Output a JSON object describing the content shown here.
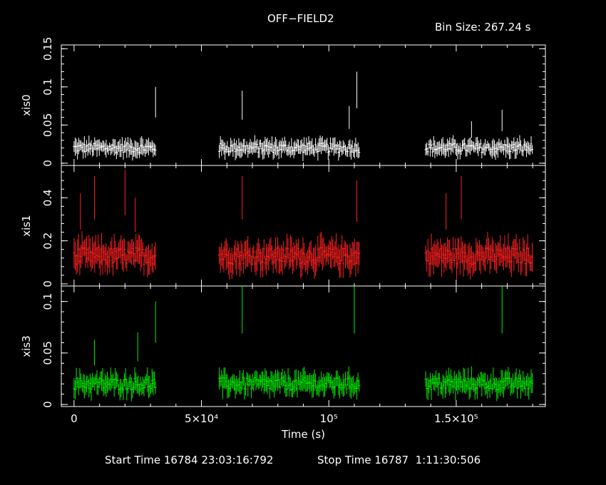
{
  "header": {
    "title": "OFF−FIELD2",
    "bin_size": "Bin Size: 267.24 s"
  },
  "footer": {
    "start_time": "Start Time 16784 23:03:16:792",
    "stop_time": "Stop Time 16787  1:11:30:506"
  },
  "chart_data": {
    "type": "scatter",
    "title": "OFF−FIELD2",
    "xlabel": "Time (s)",
    "xlim": [
      -5000,
      185000
    ],
    "x_ticks": [
      {
        "value": 0,
        "label": "0"
      },
      {
        "value": 50000,
        "label": "5×10⁴"
      },
      {
        "value": 100000,
        "label": "10⁵"
      },
      {
        "value": 150000,
        "label": "1.5×10⁵"
      }
    ],
    "segments_s": [
      [
        0,
        32000
      ],
      [
        57000,
        112000
      ],
      [
        138000,
        180000
      ]
    ],
    "bin_size_s": 267.24,
    "panels": [
      {
        "name": "xis0",
        "ylabel": "xis0",
        "color": "#ffffff",
        "ylim": [
          -0.003,
          0.155
        ],
        "y_ticks": [
          {
            "value": 0,
            "label": "0"
          },
          {
            "value": 0.05,
            "label": "0.05"
          },
          {
            "value": 0.1,
            "label": "0.1"
          },
          {
            "value": 0.15,
            "label": "0.15"
          }
        ],
        "typical_rate": 0.02,
        "spikes": [
          {
            "t": 32000,
            "rate": 0.1
          },
          {
            "t": 66000,
            "rate": 0.095
          },
          {
            "t": 108000,
            "rate": 0.075
          },
          {
            "t": 111000,
            "rate": 0.12
          },
          {
            "t": 156000,
            "rate": 0.055
          },
          {
            "t": 168000,
            "rate": 0.07
          }
        ]
      },
      {
        "name": "xis1",
        "ylabel": "xis1",
        "color": "#ff2020",
        "ylim": [
          -0.01,
          0.55
        ],
        "y_ticks": [
          {
            "value": 0,
            "label": "0"
          },
          {
            "value": 0.2,
            "label": "0.2"
          },
          {
            "value": 0.4,
            "label": "0.4"
          }
        ],
        "typical_rate": 0.13,
        "spikes": [
          {
            "t": 2500,
            "rate": 0.42
          },
          {
            "t": 8000,
            "rate": 0.5
          },
          {
            "t": 20000,
            "rate": 0.53
          },
          {
            "t": 24000,
            "rate": 0.4
          },
          {
            "t": 66000,
            "rate": 0.5
          },
          {
            "t": 111000,
            "rate": 0.48
          },
          {
            "t": 146000,
            "rate": 0.42
          },
          {
            "t": 152000,
            "rate": 0.5
          }
        ]
      },
      {
        "name": "xis3",
        "ylabel": "xis3",
        "color": "#00ee00",
        "ylim": [
          -0.002,
          0.115
        ],
        "y_ticks": [
          {
            "value": 0,
            "label": "0"
          },
          {
            "value": 0.05,
            "label": "0.05"
          },
          {
            "value": 0.1,
            "label": "0.1"
          }
        ],
        "typical_rate": 0.02,
        "spikes": [
          {
            "t": 8000,
            "rate": 0.063
          },
          {
            "t": 25000,
            "rate": 0.07
          },
          {
            "t": 32000,
            "rate": 0.1
          },
          {
            "t": 66000,
            "rate": 0.115
          },
          {
            "t": 110000,
            "rate": 0.115
          },
          {
            "t": 168000,
            "rate": 0.115
          }
        ]
      }
    ]
  }
}
